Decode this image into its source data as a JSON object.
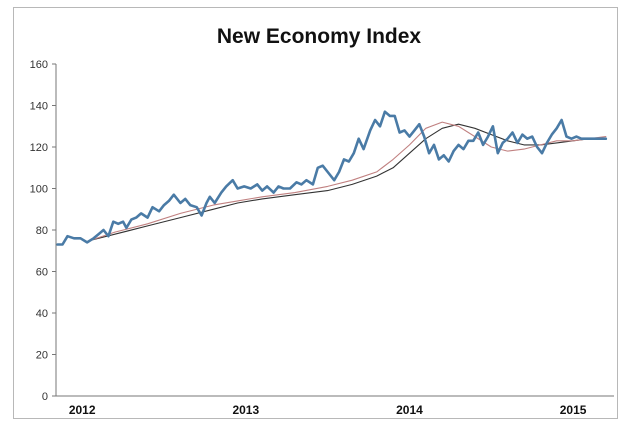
{
  "chart_data": {
    "type": "line",
    "title": "New Economy Index",
    "xlabel": "",
    "ylabel": "",
    "ylim": [
      0,
      160
    ],
    "yticks": [
      0,
      20,
      40,
      60,
      80,
      100,
      120,
      140,
      160
    ],
    "x_tick_labels": [
      {
        "label": "2012",
        "x": 2012.0
      },
      {
        "label": "2013",
        "x": 2013.0
      },
      {
        "label": "2014",
        "x": 2014.0
      },
      {
        "label": "2015",
        "x": 2015.0
      }
    ],
    "xlim": [
      2011.84,
      2015.25
    ],
    "grid": false,
    "legend": "none",
    "colors": {
      "index": "#4a7ba6",
      "ma_short": "#c08080",
      "ma_long": "#333333"
    },
    "series": [
      {
        "key": "index",
        "x": [
          2011.85,
          2011.88,
          2011.91,
          2011.95,
          2011.99,
          2012.03,
          2012.07,
          2012.1,
          2012.13,
          2012.16,
          2012.19,
          2012.22,
          2012.25,
          2012.27,
          2012.3,
          2012.33,
          2012.36,
          2012.4,
          2012.43,
          2012.47,
          2012.5,
          2012.53,
          2012.56,
          2012.6,
          2012.63,
          2012.66,
          2012.7,
          2012.73,
          2012.76,
          2012.78,
          2012.81,
          2012.85,
          2012.88,
          2012.92,
          2012.95,
          2012.99,
          2013.03,
          2013.07,
          2013.1,
          2013.13,
          2013.17,
          2013.2,
          2013.23,
          2013.27,
          2013.31,
          2013.34,
          2013.37,
          2013.41,
          2013.44,
          2013.47,
          2013.51,
          2013.54,
          2013.57,
          2013.6,
          2013.63,
          2013.66,
          2013.69,
          2013.72,
          2013.76,
          2013.79,
          2013.82,
          2013.85,
          2013.88,
          2013.91,
          2013.94,
          2013.97,
          2014.0,
          2014.03,
          2014.06,
          2014.09,
          2014.12,
          2014.15,
          2014.18,
          2014.21,
          2014.24,
          2014.27,
          2014.3,
          2014.33,
          2014.36,
          2014.39,
          2014.42,
          2014.45,
          2014.48,
          2014.51,
          2014.54,
          2014.57,
          2014.6,
          2014.63,
          2014.66,
          2014.69,
          2014.72,
          2014.75,
          2014.78,
          2014.81,
          2014.84,
          2014.87,
          2014.9,
          2014.93,
          2014.96,
          2014.99,
          2015.02,
          2015.05,
          2015.08,
          2015.11,
          2015.14,
          2015.17,
          2015.2
        ],
        "y": [
          73,
          73,
          77,
          76,
          76,
          74,
          76,
          78,
          80,
          77,
          84,
          83,
          84,
          81,
          85,
          86,
          88,
          86,
          91,
          89,
          92,
          94,
          97,
          93,
          95,
          92,
          91,
          87,
          93,
          96,
          93,
          98,
          101,
          104,
          100,
          101,
          100,
          102,
          99,
          101,
          98,
          101,
          100,
          100,
          103,
          102,
          104,
          102,
          110,
          111,
          107,
          104,
          108,
          114,
          113,
          117,
          124,
          119,
          128,
          133,
          130,
          137,
          135,
          135,
          127,
          128,
          125,
          128,
          131,
          125,
          117,
          121,
          114,
          116,
          113,
          118,
          121,
          119,
          123,
          123,
          127,
          121,
          125,
          130,
          117,
          122,
          124,
          127,
          122,
          126,
          124,
          125,
          120,
          117,
          122,
          126,
          129,
          133,
          125,
          124,
          125,
          124,
          124,
          124,
          124,
          124,
          124
        ]
      },
      {
        "key": "ma_short",
        "x": [
          2012.05,
          2012.2,
          2012.4,
          2012.6,
          2012.8,
          2012.95,
          2013.1,
          2013.3,
          2013.5,
          2013.65,
          2013.8,
          2013.9,
          2014.0,
          2014.1,
          2014.2,
          2014.3,
          2014.4,
          2014.5,
          2014.6,
          2014.7,
          2014.8,
          2014.9,
          2015.0,
          2015.1,
          2015.2
        ],
        "y": [
          75,
          79,
          83,
          88,
          92,
          94,
          96,
          98,
          101,
          104,
          108,
          114,
          121,
          129,
          132,
          130,
          125,
          120,
          118,
          119,
          121,
          123,
          123,
          124,
          125
        ]
      },
      {
        "key": "ma_long",
        "x": [
          2012.05,
          2012.2,
          2012.4,
          2012.6,
          2012.8,
          2012.95,
          2013.1,
          2013.3,
          2013.5,
          2013.65,
          2013.8,
          2013.9,
          2014.0,
          2014.1,
          2014.2,
          2014.3,
          2014.4,
          2014.5,
          2014.6,
          2014.7,
          2014.8,
          2014.9,
          2015.0,
          2015.1,
          2015.2
        ],
        "y": [
          75,
          78,
          82,
          86,
          90,
          93,
          95,
          97,
          99,
          102,
          106,
          110,
          117,
          124,
          129,
          131,
          129,
          126,
          123,
          121,
          121,
          122,
          123,
          124,
          124
        ]
      }
    ]
  }
}
